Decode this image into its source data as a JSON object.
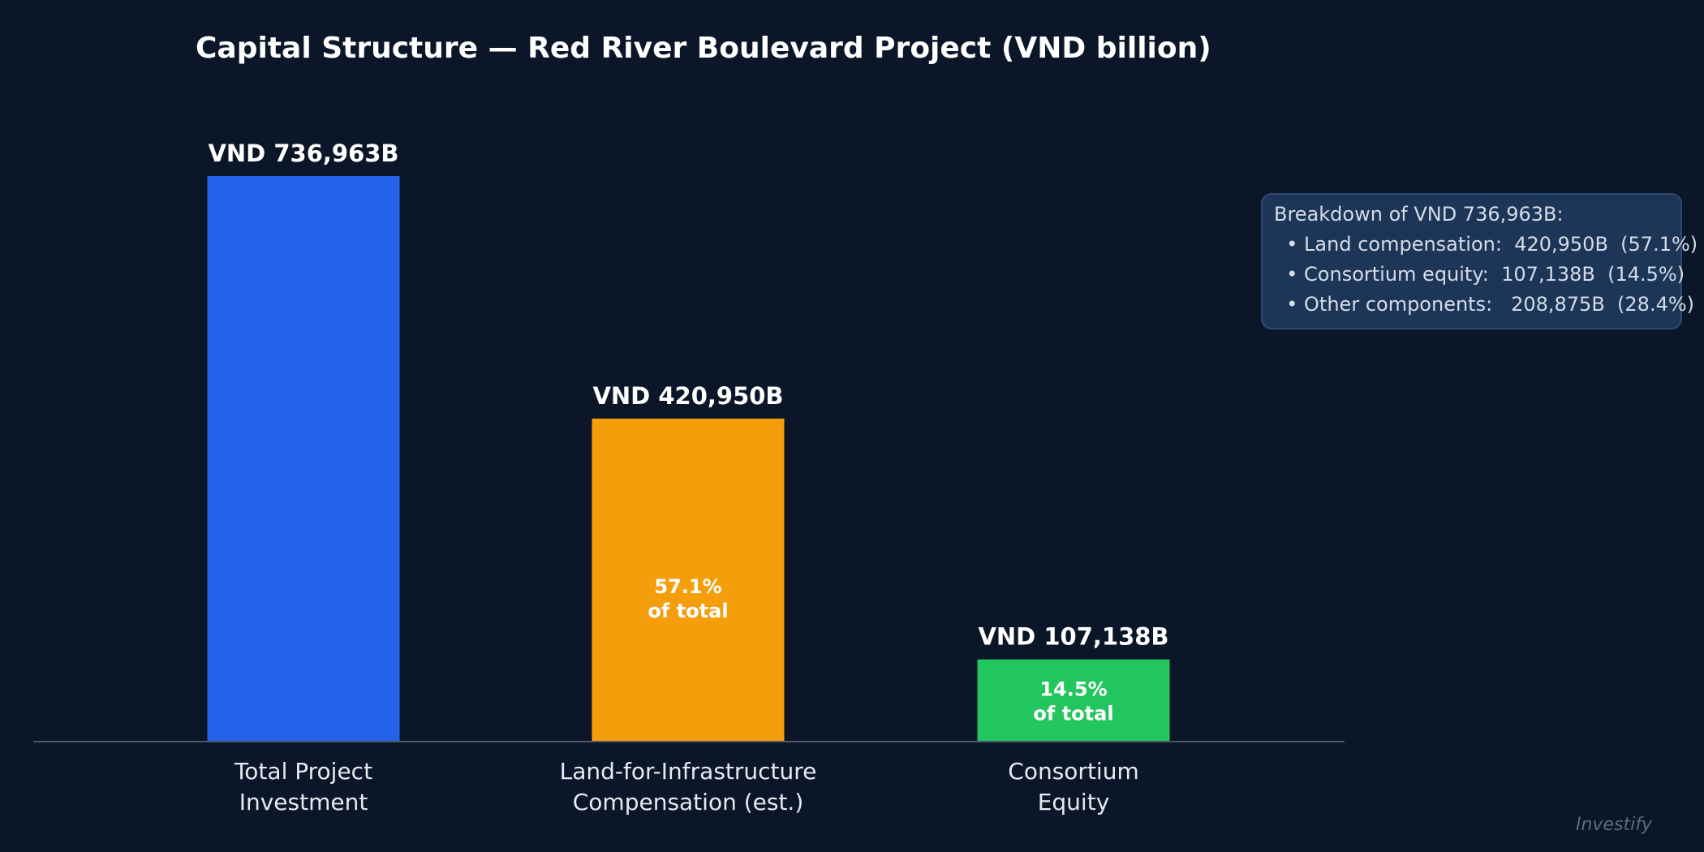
{
  "chart_data": {
    "type": "bar",
    "title": "Capital Structure — Red River Boulevard Project  (VND billion)",
    "xlabel": "",
    "ylabel": "",
    "unit": "VND billion",
    "ylim": [
      0,
      850000
    ],
    "grid": false,
    "categories": [
      [
        "Total Project",
        "Investment"
      ],
      [
        "Land-for-Infrastructure",
        "Compensation (est.)"
      ],
      [
        "Consortium",
        "Equity"
      ]
    ],
    "values": [
      736963,
      420950,
      107138
    ],
    "value_labels": [
      "VND 736,963B",
      "VND 420,950B",
      "VND 107,138B"
    ],
    "share_labels": [
      null,
      [
        "57.1%",
        "of total"
      ],
      [
        "14.5%",
        "of total"
      ]
    ],
    "colors": [
      "#2563eb",
      "#f59e0b",
      "#22c55e"
    ],
    "annotation": {
      "lines": [
        "Breakdown of VND 736,963B:",
        "  • Land compensation:  420,950B  (57.1%)",
        "  • Consortium equity:  107,138B  (14.5%)",
        "  • Other components:   208,875B  (28.4%)"
      ]
    }
  },
  "watermark": "Investify",
  "colors": {
    "background": "#0b1628",
    "axis": "#4b5567",
    "note_bg": "#1d3557",
    "note_border": "#2e4a70"
  }
}
